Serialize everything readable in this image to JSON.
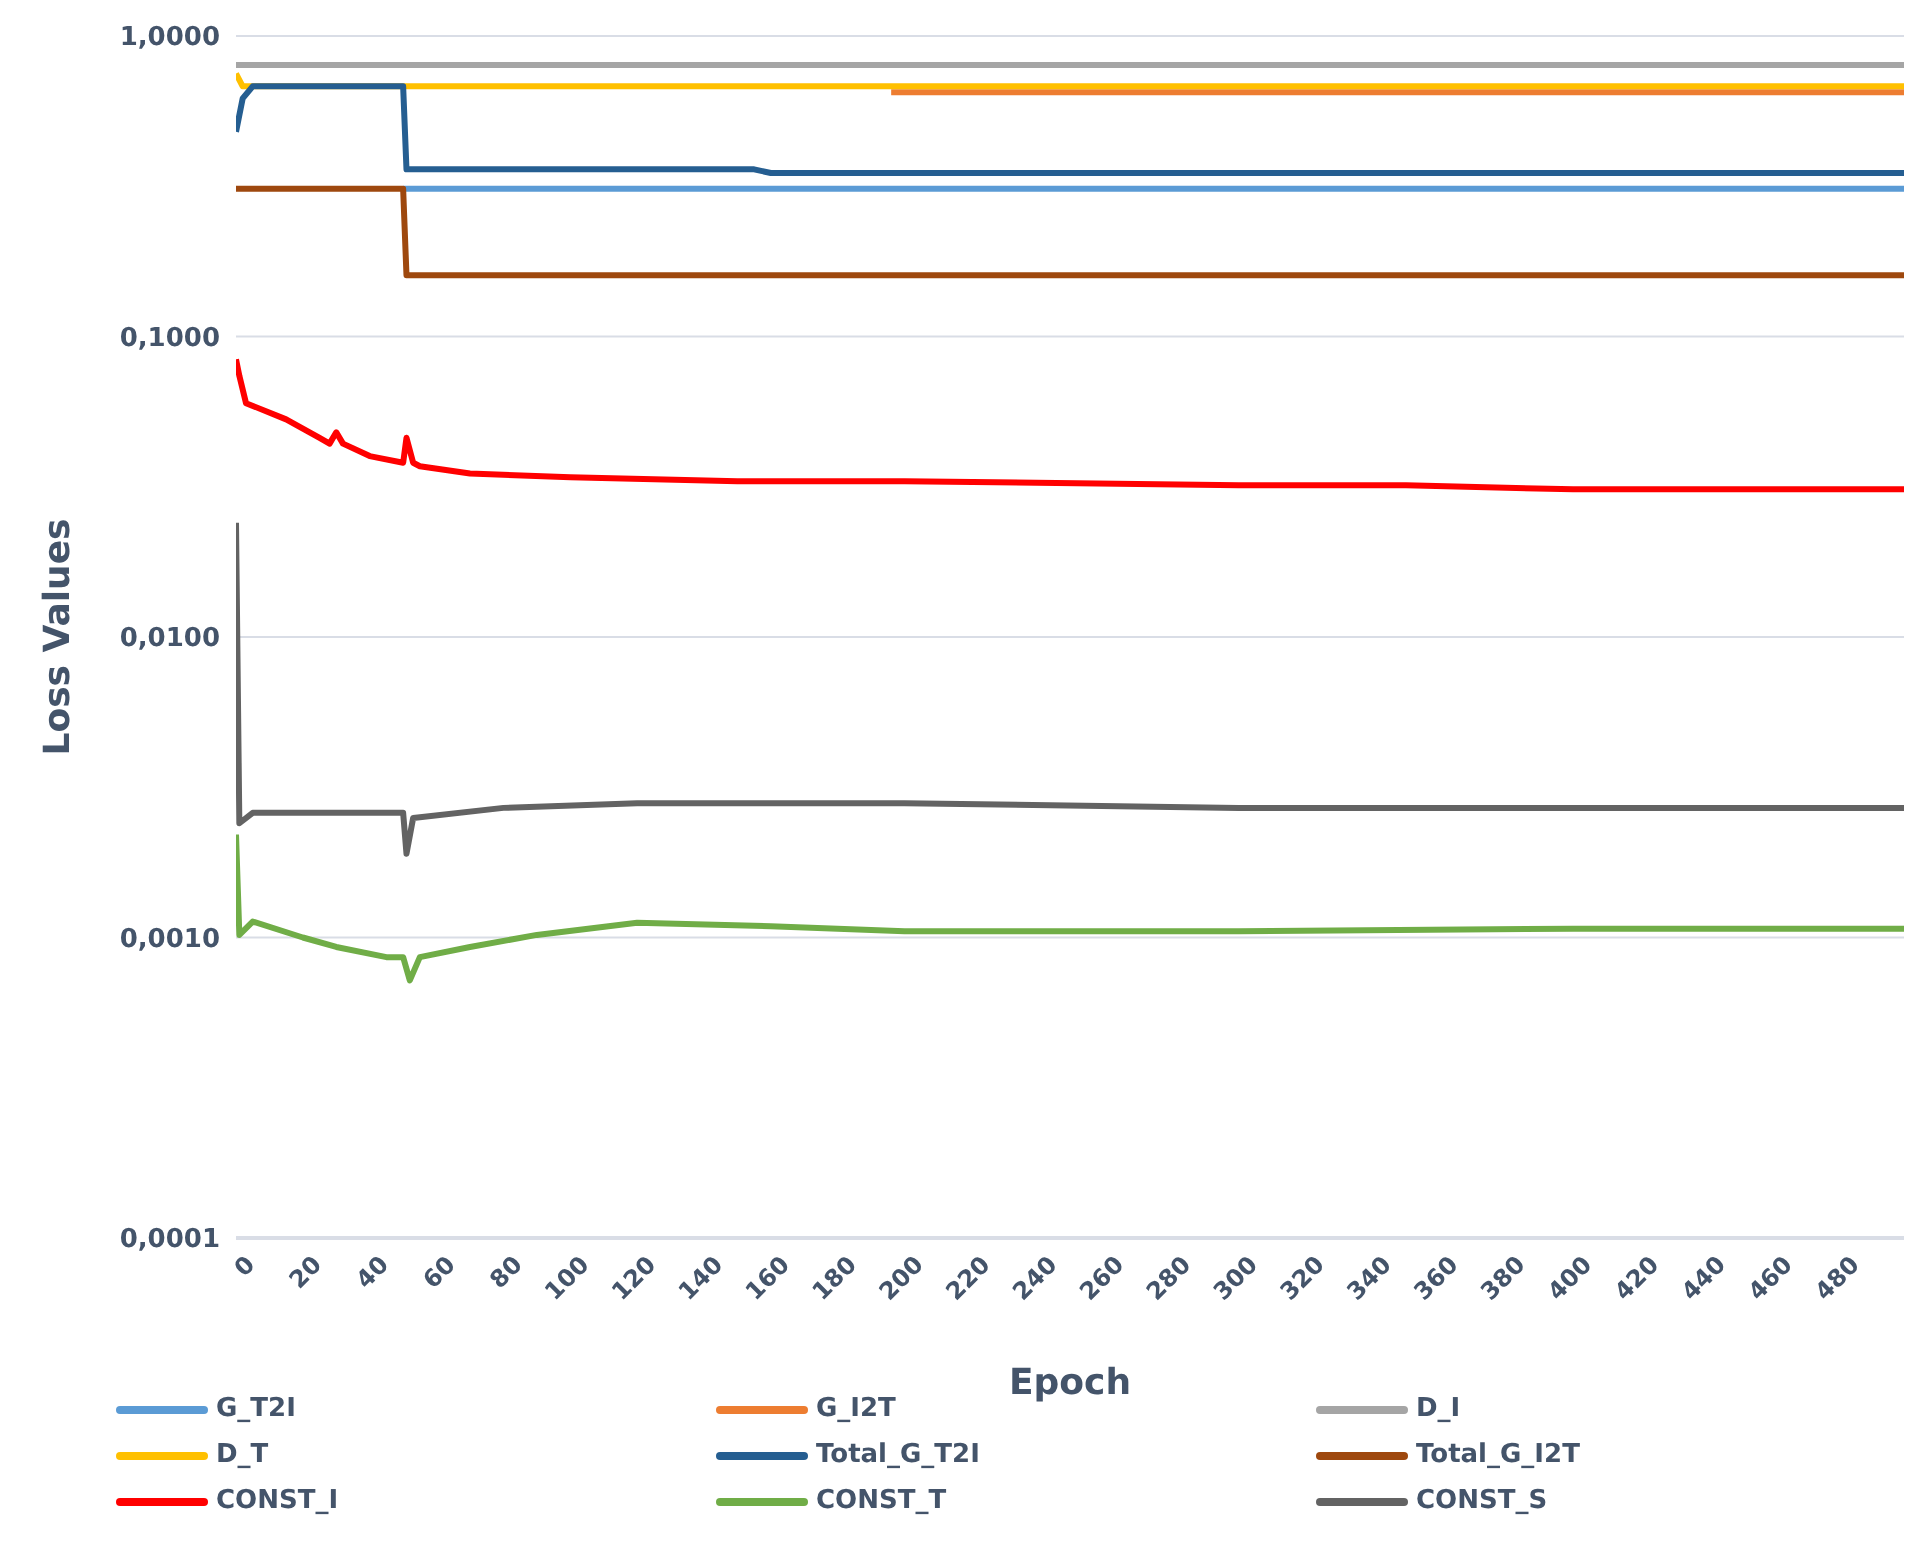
{
  "chart_data": {
    "type": "line",
    "xlabel": "Epoch",
    "ylabel": "Loss Values",
    "log": "y",
    "grid": "y",
    "legend": "bottom",
    "marker": "none",
    "line_style": "solid",
    "xlim": [
      0,
      499
    ],
    "xticks": [
      0,
      20,
      40,
      60,
      80,
      100,
      120,
      140,
      160,
      180,
      200,
      220,
      240,
      260,
      280,
      300,
      320,
      340,
      360,
      380,
      400,
      420,
      440,
      460,
      480
    ],
    "ylim": [
      0.0001,
      1
    ],
    "yticks": [
      {
        "value": 0.0001,
        "label": "0,0001"
      },
      {
        "value": 0.001,
        "label": "0,0010"
      },
      {
        "value": 0.01,
        "label": "0,0100"
      },
      {
        "value": 0.1,
        "label": "0,1000"
      },
      {
        "value": 1,
        "label": "1,0000"
      }
    ],
    "series": [
      {
        "name": "G_T2I",
        "color": "#5b9bd5",
        "x": [
          50,
          51,
          150,
          300,
          499
        ],
        "values": [
          0.31,
          0.31,
          0.31,
          0.31,
          0.31
        ]
      },
      {
        "name": "G_I2T",
        "color": "#ed7d31",
        "x": [
          196,
          222,
          300,
          400,
          499
        ],
        "values": [
          0.65,
          0.65,
          0.65,
          0.65,
          0.65
        ]
      },
      {
        "name": "D_I",
        "color": "#a5a5a5",
        "x": [
          0,
          100,
          200,
          300,
          400,
          499
        ],
        "values": [
          0.8,
          0.8,
          0.8,
          0.8,
          0.8,
          0.8
        ]
      },
      {
        "name": "D_T",
        "color": "#ffc000",
        "x": [
          0,
          2,
          100,
          200,
          300,
          400,
          499
        ],
        "values": [
          0.75,
          0.68,
          0.68,
          0.68,
          0.68,
          0.68,
          0.68
        ]
      },
      {
        "name": "Total_G_T2I",
        "color": "#255e91",
        "x": [
          0,
          2,
          5,
          50,
          51,
          100,
          155,
          160,
          300,
          499
        ],
        "values": [
          0.48,
          0.62,
          0.68,
          0.68,
          0.36,
          0.36,
          0.36,
          0.35,
          0.35,
          0.35
        ]
      },
      {
        "name": "Total_G_I2T",
        "color": "#9e480e",
        "x": [
          0,
          50,
          51,
          200,
          499
        ],
        "values": [
          0.31,
          0.31,
          0.16,
          0.16,
          0.16
        ]
      },
      {
        "name": "CONST_I",
        "color": "#ff0000",
        "x": [
          0,
          1,
          3,
          15,
          25,
          28,
          30,
          32,
          40,
          50,
          51,
          53,
          55,
          70,
          100,
          150,
          200,
          300,
          350,
          400,
          499
        ],
        "values": [
          0.084,
          0.074,
          0.06,
          0.053,
          0.046,
          0.044,
          0.048,
          0.044,
          0.04,
          0.038,
          0.046,
          0.038,
          0.037,
          0.035,
          0.034,
          0.033,
          0.033,
          0.032,
          0.032,
          0.031,
          0.031
        ]
      },
      {
        "name": "CONST_T",
        "color": "#70ad47",
        "x": [
          0,
          1,
          5,
          20,
          30,
          45,
          50,
          52,
          55,
          70,
          90,
          120,
          160,
          200,
          300,
          400,
          499
        ],
        "values": [
          0.0022,
          0.00102,
          0.00113,
          0.001,
          0.00093,
          0.00086,
          0.00086,
          0.00072,
          0.00086,
          0.00093,
          0.00102,
          0.00112,
          0.00109,
          0.00105,
          0.00105,
          0.00107,
          0.00107
        ]
      },
      {
        "name": "CONST_S",
        "color": "#636363",
        "x": [
          0,
          1,
          5,
          50,
          51,
          53,
          80,
          120,
          200,
          300,
          400,
          499
        ],
        "values": [
          0.024,
          0.0024,
          0.0026,
          0.0026,
          0.0019,
          0.0025,
          0.0027,
          0.0028,
          0.0028,
          0.0027,
          0.0027,
          0.0027
        ]
      }
    ]
  }
}
